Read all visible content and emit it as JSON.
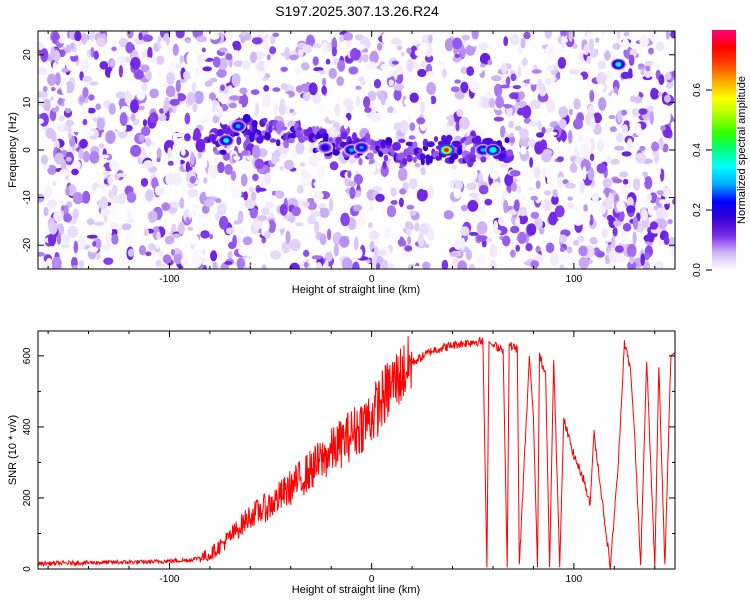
{
  "title": "S197.2025.307.13.26.R24",
  "chart_data": [
    {
      "type": "heatmap",
      "xlabel": "Height of straight line (km)",
      "ylabel": "Frequency (Hz)",
      "xlim": [
        -165,
        150
      ],
      "ylim": [
        -25,
        25
      ],
      "xticks": [
        -100,
        0,
        100
      ],
      "yticks": [
        -20,
        -10,
        0,
        10,
        20
      ],
      "colorbar": {
        "label": "Normalized spectral amplitude",
        "range": [
          0,
          0.8
        ],
        "ticks": [
          "0.0",
          "0.2",
          "0.4",
          "0.6"
        ],
        "tick_values": [
          0.0,
          0.2,
          0.4,
          0.6
        ],
        "colors": [
          "#ffffff",
          "#cfb6f5",
          "#7a2be8",
          "#3b00d4",
          "#0000ff",
          "#00aaff",
          "#00ffff",
          "#00ff80",
          "#33ff00",
          "#aaff00",
          "#ffff00",
          "#ffaa00",
          "#ff4400",
          "#ff0000",
          "#ff0080"
        ]
      },
      "ridge": {
        "description": "signal band near 0 Hz",
        "x": [
          -80,
          -70,
          -60,
          -50,
          -40,
          -30,
          -20,
          -10,
          0,
          10,
          20,
          30,
          40,
          50,
          60,
          70
        ],
        "y": [
          0,
          3,
          5,
          4,
          3,
          2,
          1,
          0.5,
          0.5,
          0,
          0,
          0,
          0,
          0,
          0,
          0
        ]
      },
      "hotspots": [
        {
          "x": -72,
          "y": 2,
          "value": 0.35
        },
        {
          "x": -66,
          "y": 5,
          "value": 0.3
        },
        {
          "x": -23,
          "y": 0.5,
          "value": 0.22
        },
        {
          "x": -10,
          "y": 0,
          "value": 0.3
        },
        {
          "x": -5,
          "y": 0.5,
          "value": 0.28
        },
        {
          "x": 37,
          "y": 0,
          "value": 0.75
        },
        {
          "x": 55,
          "y": 0,
          "value": 0.3
        },
        {
          "x": 60,
          "y": 0,
          "value": 0.4
        },
        {
          "x": 122,
          "y": 18,
          "value": 0.35
        }
      ]
    },
    {
      "type": "line",
      "xlabel": "Height of straight line (km)",
      "ylabel": "SNR (10 * v/v)",
      "xlim": [
        -165,
        150
      ],
      "ylim": [
        0,
        670
      ],
      "xticks": [
        -100,
        0,
        100
      ],
      "yticks": [
        0,
        200,
        400,
        600
      ],
      "series": [
        {
          "name": "SNR",
          "color": "#ff0000",
          "x": [
            -165,
            -140,
            -110,
            -90,
            -80,
            -70,
            -60,
            -50,
            -40,
            -30,
            -20,
            -10,
            0,
            10,
            20,
            30,
            40,
            50,
            55,
            57,
            58,
            60,
            65,
            67,
            68,
            72,
            73,
            78,
            80,
            82,
            83,
            86,
            88,
            90,
            93,
            95,
            100,
            105,
            108,
            110,
            118,
            122,
            125,
            128,
            130,
            133,
            136,
            140,
            142,
            145,
            148,
            150
          ],
          "y": [
            15,
            18,
            20,
            25,
            40,
            90,
            150,
            180,
            230,
            280,
            330,
            380,
            430,
            520,
            580,
            615,
            630,
            640,
            640,
            5,
            640,
            630,
            620,
            5,
            630,
            620,
            5,
            600,
            430,
            5,
            600,
            550,
            5,
            600,
            5,
            420,
            320,
            250,
            180,
            380,
            5,
            300,
            640,
            560,
            380,
            5,
            590,
            5,
            580,
            5,
            600,
            610
          ]
        }
      ]
    }
  ]
}
